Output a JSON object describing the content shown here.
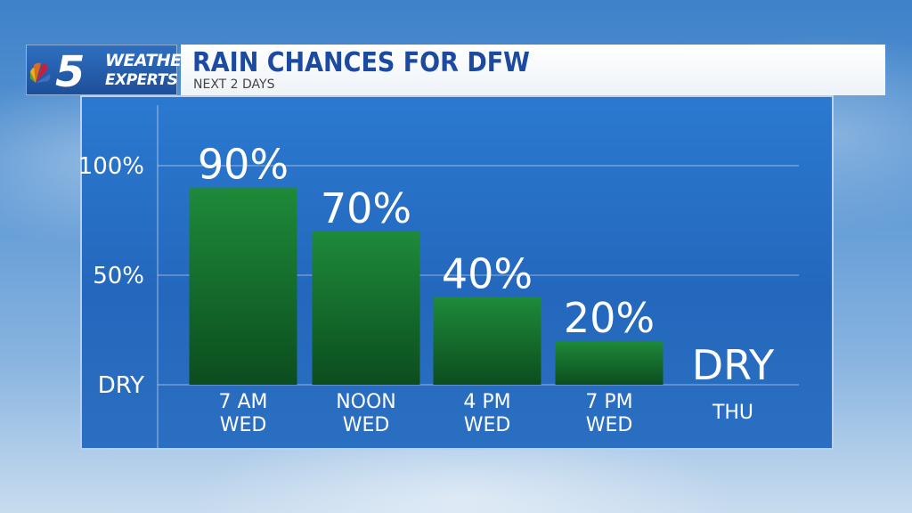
{
  "branding": {
    "logo_number": "5",
    "logo_line1": "WEATHER",
    "logo_line2": "EXPERTS"
  },
  "header": {
    "title": "RAIN CHANCES FOR DFW",
    "subtitle": "NEXT 2 DAYS"
  },
  "colors": {
    "bar_top": "#1e8a3a",
    "bar_bottom": "#0c4d1e",
    "panel": "#2a79d0",
    "title": "#1c4aa0"
  },
  "chart_data": {
    "type": "bar",
    "title": "RAIN CHANCES FOR DFW",
    "subtitle": "NEXT 2 DAYS",
    "categories": [
      [
        "7 AM",
        "WED"
      ],
      [
        "NOON",
        "WED"
      ],
      [
        "4 PM",
        "WED"
      ],
      [
        "7 PM",
        "WED"
      ],
      [
        "THU"
      ]
    ],
    "values": [
      90,
      70,
      40,
      20,
      0
    ],
    "value_labels": [
      "90%",
      "70%",
      "40%",
      "20%",
      "DRY"
    ],
    "ylim": [
      0,
      100
    ],
    "yticks": [
      {
        "value": 0,
        "label": "DRY"
      },
      {
        "value": 50,
        "label": "50%"
      },
      {
        "value": 100,
        "label": "100%"
      }
    ],
    "grid": true,
    "legend": false
  }
}
